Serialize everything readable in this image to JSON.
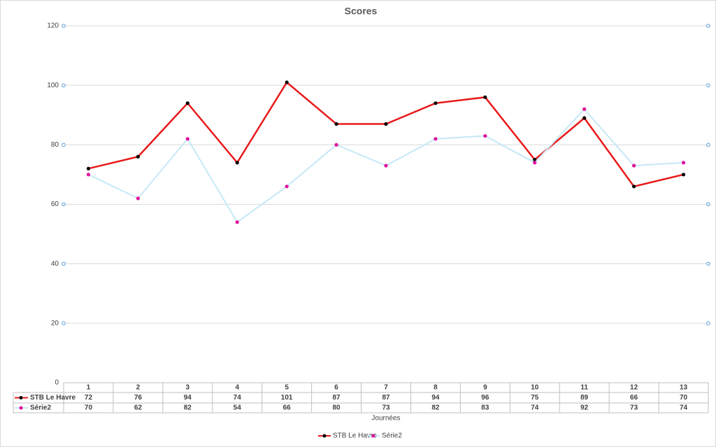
{
  "chart_data": {
    "type": "line",
    "title": "Scores",
    "x_label": "Journées",
    "categories": [
      "1",
      "2",
      "3",
      "4",
      "5",
      "6",
      "7",
      "8",
      "9",
      "10",
      "11",
      "12",
      "13"
    ],
    "series": [
      {
        "name": "STB Le Havre",
        "color": "#e8191a",
        "marker_color": "#000000",
        "values": [
          72,
          76,
          94,
          74,
          101,
          87,
          87,
          94,
          96,
          75,
          89,
          66,
          70
        ]
      },
      {
        "name": "Série2",
        "color": "#c6e8f7",
        "marker_color": "#e0109b",
        "values": [
          70,
          62,
          82,
          54,
          66,
          80,
          73,
          82,
          83,
          74,
          92,
          73,
          74
        ]
      }
    ],
    "ylim": [
      0,
      120
    ],
    "yticks": [
      0,
      20,
      40,
      60,
      80,
      100,
      120
    ],
    "grid": true,
    "legend": "bottom",
    "data_table": true
  }
}
